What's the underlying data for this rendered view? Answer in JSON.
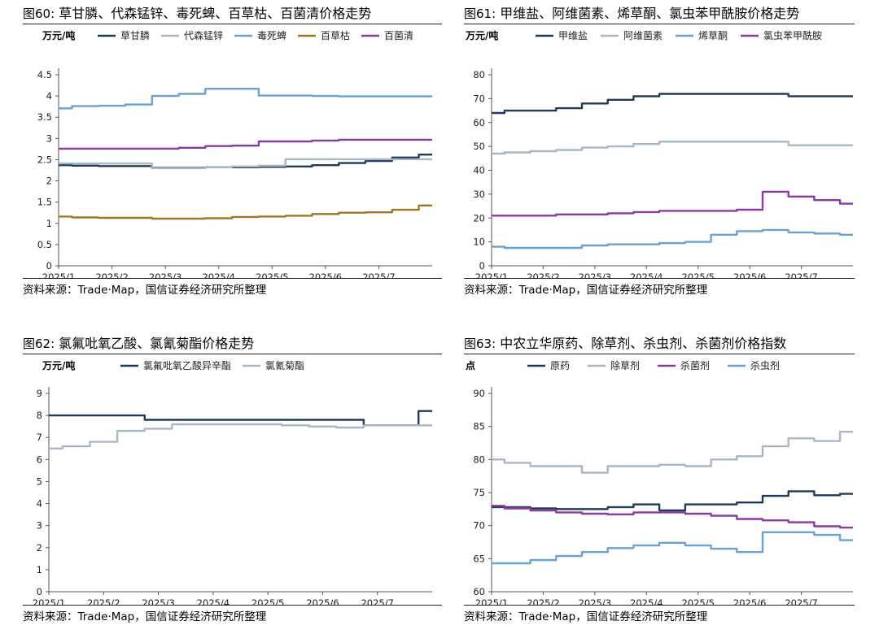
{
  "charts": [
    {
      "number": "图60:",
      "title": "草甘膦、代森锰锌、毒死蜱、百草枯、百菌清价格走势",
      "source": "资料来源：Trade·Map，国信证券经济研究所整理"
    },
    {
      "number": "图61:",
      "title": "甲维盐、阿维菌素、烯草酮、氯虫苯甲酰胺价格走势",
      "source": "资料来源：Trade·Map，国信证券经济研究所整理"
    },
    {
      "number": "图62:",
      "title": "氯氟吡氧乙酸、氯氰菊酯价格走势",
      "source": "资料来源：Trade·Map，国信证券经济研究所整理"
    },
    {
      "number": "图63:",
      "title": "中农立华原药、除草剂、杀虫剂、杀菌剂价格指数",
      "source": "资料来源：Trade·Map，国信证券经济研究所整理"
    }
  ],
  "chart_data": [
    {
      "type": "line",
      "ylabel": "万元/吨",
      "ylim": [
        0,
        4.5
      ],
      "yticks": [
        "0",
        "0.5",
        "1",
        "1.5",
        "2",
        "2.5",
        "3",
        "3.5",
        "4",
        "4.5"
      ],
      "xticks": [
        "2025/1",
        "2025/2",
        "2025/3",
        "2025/4",
        "2025/5",
        "2025/6",
        "2025/7"
      ],
      "x": [
        "2025/1",
        "2025/1",
        "2025/2",
        "2025/2",
        "2025/3",
        "2025/3",
        "2025/4",
        "2025/4",
        "2025/5",
        "2025/5",
        "2025/6",
        "2025/6",
        "2025/7",
        "2025/7",
        "2025/8"
      ],
      "grid": false,
      "legend_position": "top",
      "series": [
        {
          "name": "草甘膦",
          "color": "#1f3a5a",
          "values": [
            2.37,
            2.36,
            2.35,
            2.35,
            2.31,
            2.31,
            2.32,
            2.32,
            2.33,
            2.34,
            2.37,
            2.42,
            2.47,
            2.55,
            2.62
          ]
        },
        {
          "name": "代森锰锌",
          "color": "#a9b6c3",
          "values": [
            2.41,
            2.41,
            2.41,
            2.41,
            2.3,
            2.3,
            2.32,
            2.34,
            2.36,
            2.51,
            2.51,
            2.51,
            2.51,
            2.51,
            2.51
          ]
        },
        {
          "name": "毒死蜱",
          "color": "#6aa2d2",
          "values": [
            3.71,
            3.76,
            3.77,
            3.8,
            4.0,
            4.05,
            4.17,
            4.17,
            4.01,
            4.01,
            4.0,
            3.99,
            3.99,
            3.99,
            3.99
          ]
        },
        {
          "name": "百草枯",
          "color": "#9a7a22",
          "values": [
            1.16,
            1.14,
            1.13,
            1.13,
            1.11,
            1.11,
            1.12,
            1.15,
            1.16,
            1.18,
            1.22,
            1.25,
            1.26,
            1.32,
            1.42
          ]
        },
        {
          "name": "百菌清",
          "color": "#8a3aa0",
          "values": [
            2.76,
            2.76,
            2.76,
            2.76,
            2.76,
            2.78,
            2.82,
            2.83,
            2.93,
            2.93,
            2.95,
            2.97,
            2.97,
            2.97,
            2.97
          ]
        }
      ]
    },
    {
      "type": "line",
      "ylabel": "万元/吨",
      "ylim": [
        0,
        80
      ],
      "yticks": [
        "0",
        "10",
        "20",
        "30",
        "40",
        "50",
        "60",
        "70",
        "80"
      ],
      "xticks": [
        "2025/1",
        "2025/2",
        "2025/3",
        "2025/4",
        "2025/5",
        "2025/6",
        "2025/7"
      ],
      "x": [
        "2025/1",
        "2025/1",
        "2025/2",
        "2025/2",
        "2025/3",
        "2025/3",
        "2025/4",
        "2025/4",
        "2025/5",
        "2025/5",
        "2025/6",
        "2025/6",
        "2025/7",
        "2025/7",
        "2025/8"
      ],
      "grid": false,
      "legend_position": "top",
      "series": [
        {
          "name": "甲维盐",
          "color": "#1f3a5a",
          "values": [
            64,
            65,
            65,
            66,
            68,
            69.5,
            71,
            72,
            72,
            72,
            72,
            72,
            71,
            71,
            71
          ]
        },
        {
          "name": "阿维菌素",
          "color": "#a9b6c3",
          "values": [
            47,
            47.5,
            48,
            48.5,
            49.5,
            50,
            51,
            52,
            52,
            52,
            52,
            52,
            50.5,
            50.5,
            50.5
          ]
        },
        {
          "name": "烯草酮",
          "color": "#6aa2d2",
          "values": [
            8,
            7.5,
            7.5,
            7.5,
            8.5,
            9,
            9,
            9.5,
            10,
            13,
            14.5,
            15,
            14,
            13.5,
            13
          ]
        },
        {
          "name": "氯虫苯甲酰胺",
          "color": "#8a3aa0",
          "values": [
            21,
            21,
            21,
            21.5,
            21.5,
            22,
            22.5,
            23,
            23,
            23,
            23.5,
            31,
            29,
            27.5,
            26
          ]
        }
      ]
    },
    {
      "type": "line",
      "ylabel": "万元/吨",
      "ylim": [
        0,
        9
      ],
      "yticks": [
        "0",
        "1",
        "2",
        "3",
        "4",
        "5",
        "6",
        "7",
        "8",
        "9"
      ],
      "xticks": [
        "2025/1",
        "2025/2",
        "2025/3",
        "2025/4",
        "2025/5",
        "2025/6",
        "2025/7"
      ],
      "x": [
        "2025/1",
        "2025/1",
        "2025/2",
        "2025/2",
        "2025/3",
        "2025/3",
        "2025/4",
        "2025/4",
        "2025/5",
        "2025/5",
        "2025/6",
        "2025/6",
        "2025/7",
        "2025/7",
        "2025/8"
      ],
      "grid": false,
      "legend_position": "top",
      "series": [
        {
          "name": "氯氟吡氧乙酸异辛酯",
          "color": "#1f3a5a",
          "values": [
            8.0,
            8.0,
            8.0,
            8.0,
            7.8,
            7.8,
            7.8,
            7.8,
            7.8,
            7.8,
            7.8,
            7.8,
            7.55,
            7.55,
            8.2
          ]
        },
        {
          "name": "氯氰菊酯",
          "color": "#a9b6c3",
          "values": [
            6.5,
            6.6,
            6.8,
            7.3,
            7.4,
            7.6,
            7.6,
            7.6,
            7.6,
            7.55,
            7.5,
            7.45,
            7.55,
            7.55,
            7.55
          ]
        }
      ]
    },
    {
      "type": "line",
      "ylabel": "点",
      "ylim": [
        60,
        90
      ],
      "yticks": [
        "60",
        "65",
        "70",
        "75",
        "80",
        "85",
        "90"
      ],
      "xticks": [
        "2025/1",
        "2025/2",
        "2025/3",
        "2025/4",
        "2025/5",
        "2025/6",
        "2025/7"
      ],
      "x": [
        "2025/1",
        "2025/1",
        "2025/2",
        "2025/2",
        "2025/3",
        "2025/3",
        "2025/4",
        "2025/4",
        "2025/5",
        "2025/5",
        "2025/6",
        "2025/6",
        "2025/7",
        "2025/7",
        "2025/8"
      ],
      "grid": false,
      "legend_position": "top",
      "series": [
        {
          "name": "原药",
          "color": "#1f3a5a",
          "values": [
            72.8,
            72.8,
            72.6,
            72.5,
            72.5,
            72.8,
            73.2,
            72.3,
            73.2,
            73.2,
            73.5,
            74.5,
            75.2,
            74.6,
            74.8
          ]
        },
        {
          "name": "除草剂",
          "color": "#a9b6c3",
          "values": [
            80.0,
            79.5,
            79.0,
            79.0,
            78.0,
            79.0,
            79.0,
            79.2,
            79.0,
            80.0,
            80.5,
            82.0,
            83.2,
            82.8,
            84.2
          ]
        },
        {
          "name": "杀菌剂",
          "color": "#8a3aa0",
          "values": [
            73.0,
            72.6,
            72.3,
            72.0,
            71.8,
            71.7,
            72.0,
            72.0,
            71.8,
            71.5,
            71.0,
            70.8,
            70.5,
            69.9,
            69.7
          ]
        },
        {
          "name": "杀虫剂",
          "color": "#6aa2d2",
          "values": [
            64.3,
            64.3,
            64.8,
            65.4,
            66.0,
            66.6,
            67.0,
            67.4,
            67.0,
            66.5,
            66.0,
            69.0,
            69.0,
            68.6,
            67.8
          ]
        }
      ]
    }
  ]
}
